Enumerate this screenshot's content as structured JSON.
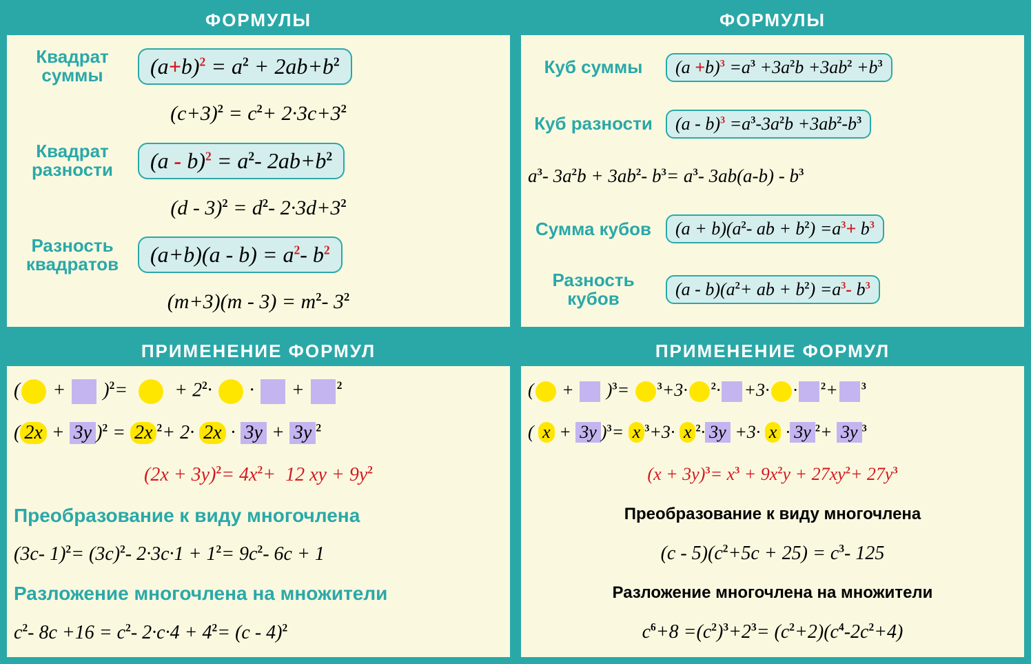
{
  "panels": {
    "tl": {
      "header": "ФОРМУЛЫ",
      "labels": {
        "sq_sum": "Квадрат суммы",
        "sq_diff": "Квадрат разности",
        "diff_sq": "Разность квадратов"
      },
      "ex1": "(c+3)² = c² + 2·3c+3²",
      "ex2": "(d - 3)² = d² - 2·3d+3²",
      "ex3": "(m+3)(m - 3) = m² - 3²"
    },
    "tr": {
      "header": "ФОРМУЛЫ",
      "labels": {
        "cube_sum": "Куб суммы",
        "cube_diff": "Куб разности",
        "sum_cubes": "Сумма кубов",
        "diff_cubes": "Разность кубов"
      },
      "mid": "a³- 3a²b + 3ab²- b³= a³- 3ab(a-b) - b³"
    },
    "bl": {
      "header": "ПРИМЕНЕНИЕ ФОРМУЛ",
      "red_line": "(2x + 3y)² = 4x² + 12 xy + 9y²",
      "sub1": "Преобразование к виду многочлена",
      "ex1": "(3c- 1)² = (3c)² - 2·3c·1 + 1² = 9c² - 6c + 1",
      "sub2": "Разложение многочлена на множители",
      "ex2": "c² - 8c +16 = c² - 2·c·4 + 4² = (c - 4)²"
    },
    "br": {
      "header": "ПРИМЕНЕНИЕ ФОРМУЛ",
      "red_line": "(x + 3y)³ = x³ + 9x²y + 27xy² + 27y³",
      "sub1": "Преобразование к виду многочлена",
      "ex1": "(c - 5)(c²+5c + 25) = c³- 125",
      "sub2": "Разложение многочлена на множители",
      "ex2": "c⁶+8 =(c²)³+2³= (c²+2)(c⁴-2c²+4)"
    }
  },
  "colors": {
    "teal": "#2aa8a8",
    "panel_bg": "#faf9e0",
    "box_bg": "#d4eeed",
    "red": "#d4181e",
    "yellow": "#ffe600",
    "purple": "#c4b5f0"
  }
}
